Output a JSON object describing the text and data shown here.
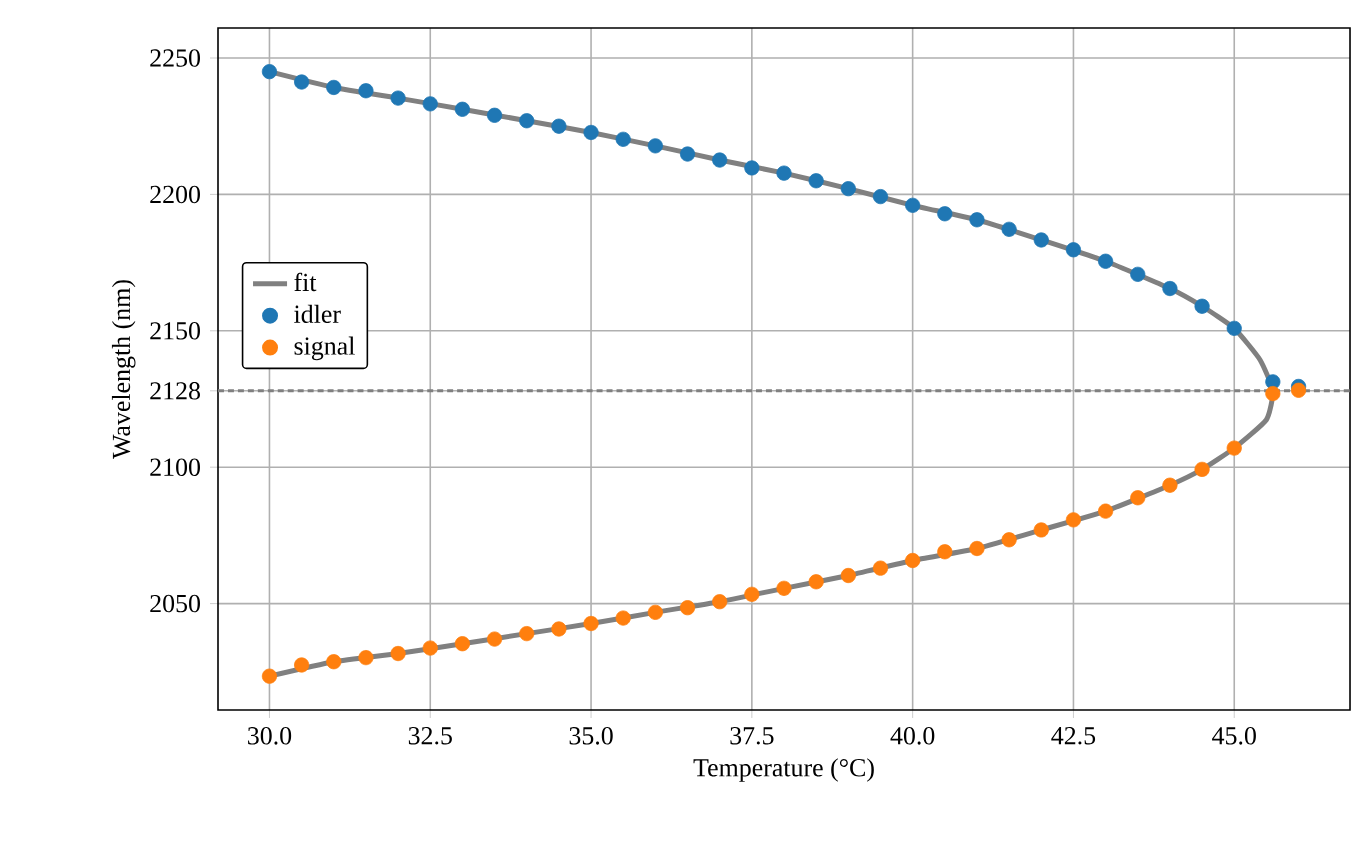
{
  "chart_data": {
    "type": "scatter",
    "xlabel": "Temperature (°C)",
    "ylabel": "Wavelength (nm)",
    "x": [
      30,
      30.5,
      31,
      31.5,
      32,
      32.5,
      33,
      33.5,
      34,
      34.5,
      35,
      35.5,
      36,
      36.5,
      37,
      37.5,
      38,
      38.5,
      39,
      39.5,
      40,
      40.5,
      41,
      41.5,
      42,
      42.5,
      43,
      43.5,
      44,
      44.5,
      45,
      45.6,
      46
    ],
    "series": [
      {
        "name": "fit",
        "type": "line",
        "marker": "none",
        "color": "#808080",
        "x": [
          30,
          31,
          32,
          33,
          34,
          35,
          36,
          37,
          38,
          39,
          40,
          41,
          42,
          43,
          44,
          44.5,
          45,
          45.4,
          45.6,
          45.5,
          45,
          44.5,
          44,
          43,
          42,
          41,
          40,
          39,
          38,
          37,
          36,
          35,
          34,
          33,
          32,
          31,
          30
        ],
        "values": [
          2245,
          2239.2,
          2235.3,
          2231.2,
          2227,
          2222.7,
          2217.8,
          2212.6,
          2207.8,
          2202.1,
          2196,
          2190.7,
          2183.3,
          2175.5,
          2165.5,
          2159,
          2150.9,
          2139.4,
          2128,
          2117.4,
          2107,
          2099.2,
          2093.4,
          2083.9,
          2077,
          2070.2,
          2065.8,
          2060.3,
          2055.6,
          2050.7,
          2046.8,
          2042.7,
          2039,
          2035.3,
          2031.7,
          2028.7,
          2023.4
        ]
      },
      {
        "name": "idler",
        "color": "#1f77b4",
        "values": [
          2245,
          2241.2,
          2239.2,
          2238,
          2235.3,
          2233.2,
          2231.2,
          2229,
          2227,
          2225,
          2222.7,
          2220.2,
          2217.8,
          2214.8,
          2212.6,
          2209.7,
          2207.8,
          2205,
          2202.1,
          2199.2,
          2196,
          2192.9,
          2190.7,
          2187.2,
          2183.3,
          2179.7,
          2175.5,
          2170.7,
          2165.5,
          2159,
          2150.9,
          2131.3,
          2129.6
        ]
      },
      {
        "name": "signal",
        "color": "#ff7f0e",
        "values": [
          2023.4,
          2027.5,
          2028.7,
          2030.2,
          2031.7,
          2033.7,
          2035.3,
          2037,
          2039,
          2040.7,
          2042.7,
          2044.7,
          2046.8,
          2048.5,
          2050.7,
          2053.4,
          2055.6,
          2058,
          2060.3,
          2063,
          2065.8,
          2069,
          2070.2,
          2073.4,
          2077,
          2080.7,
          2083.9,
          2088.8,
          2093.4,
          2099.2,
          2107,
          2127,
          2128.2
        ]
      }
    ],
    "xlim": [
      29.2,
      46.8
    ],
    "ylim": [
      2011,
      2261
    ],
    "xticks": [
      {
        "value": 30,
        "label": "30.0"
      },
      32.5,
      {
        "value": 35,
        "label": "35.0"
      },
      37.5,
      {
        "value": 40,
        "label": "40.0"
      },
      42.5,
      {
        "value": 45,
        "label": "45.0"
      }
    ],
    "yticks": [
      2050,
      2100,
      2128,
      2150,
      2200,
      2250
    ],
    "ref_lines": [
      {
        "axis": "y",
        "value": 2128,
        "color": "#808080",
        "line_style": "dashed"
      }
    ],
    "grid": true,
    "legend": "left",
    "marker": "circle"
  }
}
